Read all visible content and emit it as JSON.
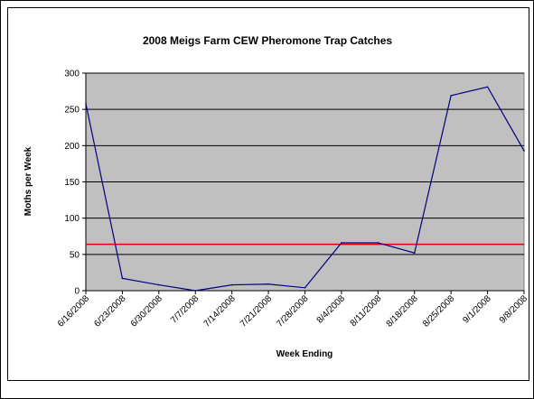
{
  "chart_data": {
    "type": "line",
    "title": "2008 Meigs Farm CEW Pheromone Trap Catches",
    "xlabel": "Week Ending",
    "ylabel": "Moths per Week",
    "categories": [
      "6/16/2008",
      "6/23/2008",
      "6/30/2008",
      "7/7/2008",
      "7/14/2008",
      "7/21/2008",
      "7/28/2008",
      "8/4/2008",
      "8/11/2008",
      "8/18/2008",
      "8/25/2008",
      "9/1/2008",
      "9/8/2008"
    ],
    "series": [
      {
        "values": [
          258,
          17,
          8,
          0,
          8,
          9,
          4,
          66,
          66,
          52,
          269,
          281,
          193
        ],
        "color": "#000080"
      }
    ],
    "reference_lines": [
      {
        "value": 64,
        "color": "#e00000"
      }
    ],
    "y_ticks": [
      0,
      50,
      100,
      150,
      200,
      250,
      300
    ],
    "ylim": [
      0,
      300
    ],
    "grid": "horizontal",
    "plot_background": "#c0c0c0",
    "legend": "none"
  }
}
